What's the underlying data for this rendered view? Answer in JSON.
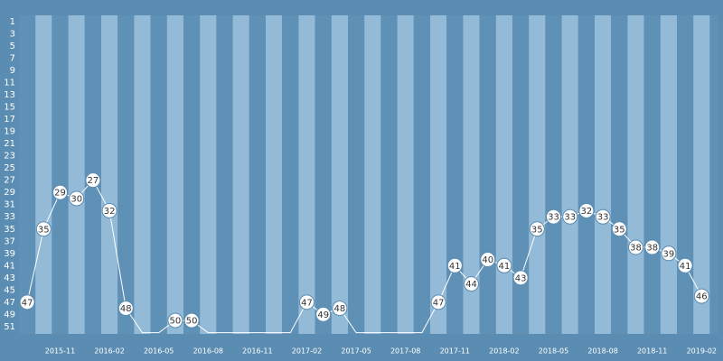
{
  "chart_data": {
    "type": "line",
    "categories": [
      null,
      null,
      "2015-11",
      null,
      null,
      "2016-02",
      null,
      null,
      "2016-05",
      null,
      null,
      "2016-08",
      null,
      null,
      "2016-11",
      null,
      null,
      "2017-02",
      null,
      null,
      "2017-05",
      null,
      null,
      "2017-08",
      null,
      null,
      "2017-11",
      null,
      null,
      "2018-02",
      null,
      null,
      "2018-05",
      null,
      null,
      "2018-08",
      null,
      null,
      "2018-11",
      null,
      null,
      "2019-02"
    ],
    "values": [
      47,
      35,
      29,
      30,
      27,
      32,
      48,
      52,
      52,
      50,
      50,
      52,
      52,
      52,
      52,
      52,
      52,
      47,
      49,
      48,
      52,
      52,
      52,
      52,
      52,
      47,
      41,
      44,
      40,
      41,
      43,
      35,
      33,
      33,
      32,
      33,
      35,
      38,
      38,
      39,
      41,
      46
    ],
    "value_labels": [
      "47",
      "35",
      "29",
      "30",
      "27",
      "32",
      "48",
      null,
      null,
      "50",
      "50",
      null,
      null,
      null,
      null,
      null,
      null,
      "47",
      "49",
      "48",
      null,
      null,
      null,
      null,
      null,
      "47",
      "41",
      "44",
      "40",
      "41",
      "43",
      "35",
      "33",
      "33",
      "32",
      "33",
      "35",
      "38",
      "38",
      "39",
      "41",
      "46"
    ],
    "color": "#ffffff",
    "ylim": [
      0,
      52.2
    ],
    "y_reversed": true,
    "yticks": [
      1,
      3,
      5,
      7,
      9,
      11,
      13,
      15,
      17,
      19,
      21,
      23,
      25,
      27,
      29,
      31,
      33,
      35,
      37,
      39,
      41,
      43,
      45,
      47,
      49,
      51
    ],
    "stripe_colors": [
      "#5f90b5",
      "#93bad7"
    ]
  }
}
